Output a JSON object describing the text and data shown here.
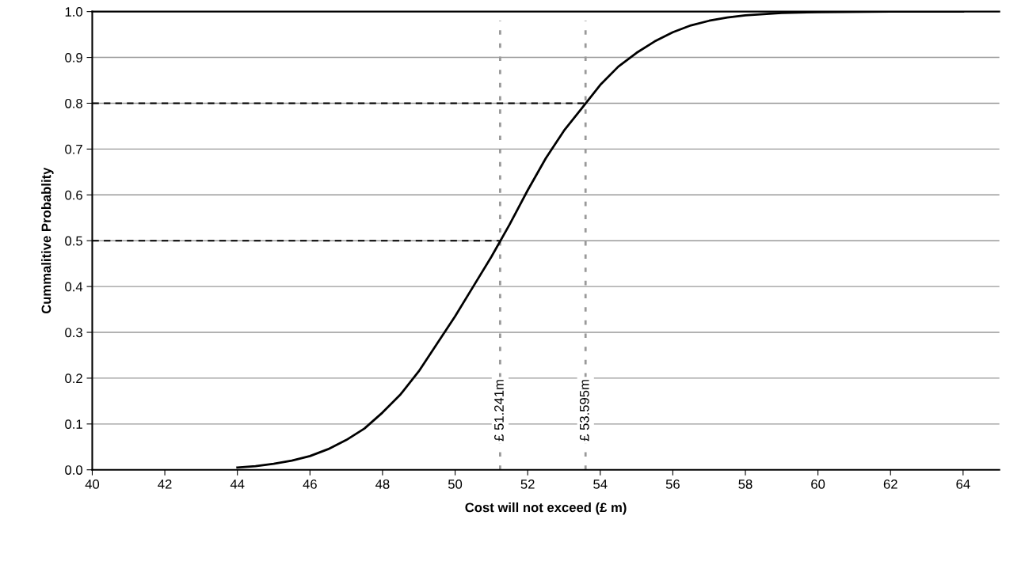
{
  "chart_data": {
    "type": "line",
    "xlabel": "Cost will not exceed (£ m)",
    "ylabel": "Cummalitive Probablity",
    "series": [
      {
        "color": "#000000",
        "x": [
          44,
          44.5,
          45,
          45.5,
          46,
          46.5,
          47,
          47.5,
          48,
          48.5,
          49,
          49.5,
          50,
          50.5,
          51,
          51.5,
          52,
          52.5,
          53,
          53.5,
          54,
          54.5,
          55,
          55.5,
          56,
          56.5,
          57,
          57.5,
          58,
          59,
          60,
          62,
          64
        ],
        "values": [
          0.005,
          0.008,
          0.013,
          0.02,
          0.03,
          0.045,
          0.065,
          0.09,
          0.125,
          0.165,
          0.215,
          0.275,
          0.335,
          0.4,
          0.465,
          0.535,
          0.61,
          0.68,
          0.74,
          0.79,
          0.84,
          0.88,
          0.91,
          0.935,
          0.955,
          0.97,
          0.98,
          0.987,
          0.992,
          0.997,
          0.999,
          1.0,
          1.0
        ]
      }
    ],
    "xlim": [
      40,
      65
    ],
    "xticks": [
      40,
      42,
      44,
      46,
      48,
      50,
      52,
      54,
      56,
      58,
      60,
      62,
      64
    ],
    "ylim": [
      0,
      1
    ],
    "yticks": [
      {
        "value": 0,
        "label": "0.0"
      },
      {
        "value": 0.1,
        "label": "0.1"
      },
      {
        "value": 0.2,
        "label": "0.2"
      },
      {
        "value": 0.3,
        "label": "0.3"
      },
      {
        "value": 0.4,
        "label": "0.4"
      },
      {
        "value": 0.5,
        "label": "0.5"
      },
      {
        "value": 0.6,
        "label": "0.6"
      },
      {
        "value": 0.7,
        "label": "0.7"
      },
      {
        "value": 0.8,
        "label": "0.8"
      },
      {
        "value": 0.9,
        "label": "0.9"
      },
      {
        "value": 1,
        "label": "1.0"
      }
    ],
    "grid": "y",
    "marker": "none",
    "line_style": "solid",
    "ref_lines": [
      {
        "axis": "x",
        "value": 51.241,
        "label": "£ 51.241m",
        "color": "#999999",
        "line_style": "dotted"
      },
      {
        "axis": "x",
        "value": 53.595,
        "label": "£ 53.595m",
        "color": "#999999",
        "line_style": "dotted"
      },
      {
        "axis": "y",
        "value": 0.5,
        "color": "#000000",
        "line_style": "dashed"
      },
      {
        "axis": "y",
        "value": 0.8,
        "color": "#000000",
        "line_style": "dashed"
      }
    ]
  }
}
